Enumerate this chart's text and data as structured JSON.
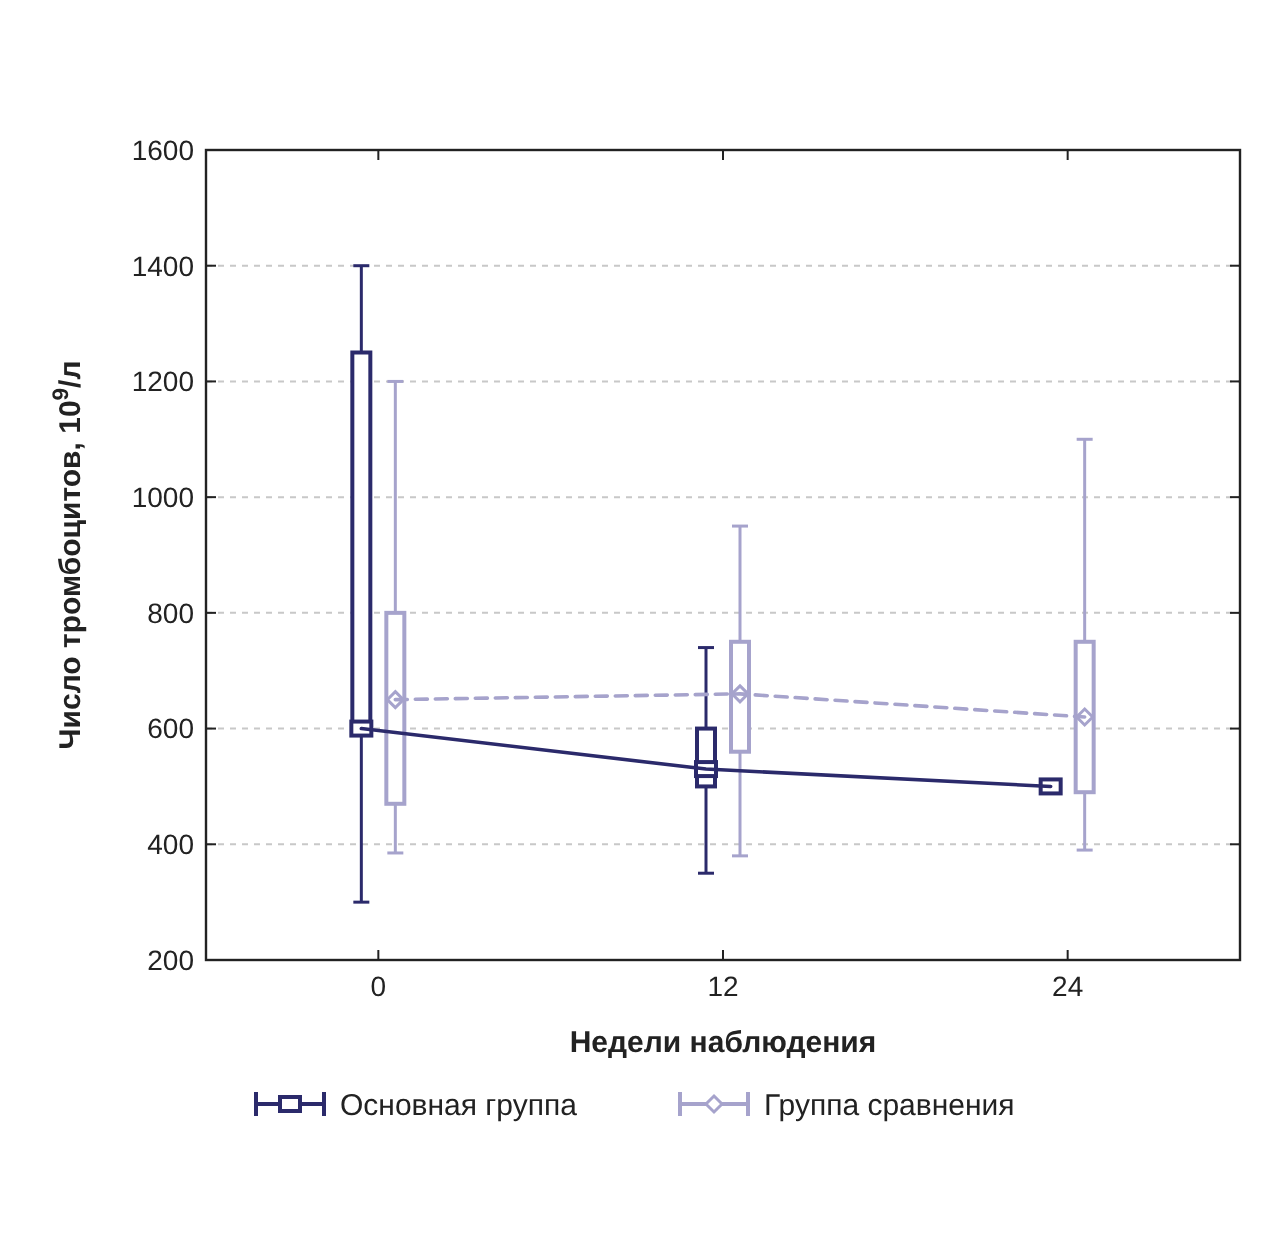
{
  "chart_data": {
    "type": "box",
    "xlabel": "Недели наблюдения",
    "ylabel": "Число тромбоцитов, 10$^{9}$/л",
    "categories": [
      "0",
      "12",
      "24"
    ],
    "ylim": [
      200,
      1600
    ],
    "yticks": [
      200,
      400,
      600,
      800,
      1000,
      1200,
      1400,
      1600
    ],
    "grid": "y",
    "legend": "bottom",
    "series": [
      {
        "name": "Основная группа",
        "color": "#2b2a6b",
        "marker": "square",
        "boxes": [
          {
            "low": 300,
            "q1": 590,
            "median": 600,
            "q3": 1250,
            "high": 1400
          },
          {
            "low": 350,
            "q1": 500,
            "median": 530,
            "q3": 600,
            "high": 740
          },
          {
            "low": 490,
            "q1": 490,
            "median": 500,
            "q3": 510,
            "high": 510
          }
        ]
      },
      {
        "name": "Группа сравнения",
        "color": "#a6a3cc",
        "marker": "diamond",
        "boxes": [
          {
            "low": 385,
            "q1": 470,
            "median": 650,
            "q3": 800,
            "high": 1200
          },
          {
            "low": 380,
            "q1": 560,
            "median": 660,
            "q3": 750,
            "high": 950
          },
          {
            "low": 390,
            "q1": 490,
            "median": 620,
            "q3": 750,
            "high": 1100
          }
        ]
      },
      {
        "type": "line",
        "color": "#2b2a6b",
        "line_style": "solid",
        "values": [
          600,
          530,
          500
        ]
      },
      {
        "type": "line",
        "color": "#a6a3cc",
        "line_style": "dashed",
        "values": [
          650,
          660,
          620
        ]
      }
    ]
  }
}
